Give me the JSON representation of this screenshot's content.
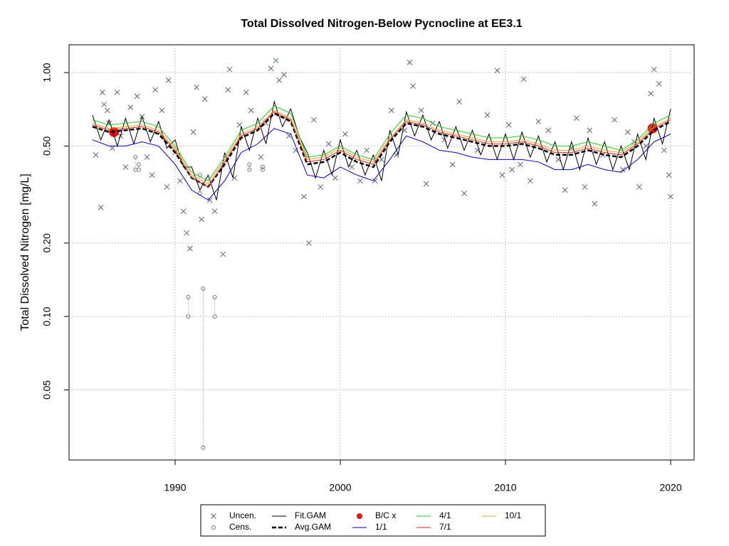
{
  "chart_data": {
    "type": "line",
    "title": "Total Dissolved Nitrogen-Below Pycnocline at EE3.1",
    "y_label": "Total Dissolved Nitrogen [mg/L]",
    "xlim": [
      1983.58,
      2021.42
    ],
    "ylim": [
      0.0258,
      1.3
    ],
    "log_y": true,
    "grid": true,
    "xticks": [
      1990,
      2000,
      2010,
      2020
    ],
    "yticks": [
      {
        "value": 0.05,
        "label": "0.05"
      },
      {
        "value": 0.1,
        "label": "0.10"
      },
      {
        "value": 0.2,
        "label": "0.20"
      },
      {
        "value": 0.5,
        "label": "0.50"
      },
      {
        "value": 1,
        "label": "1.00"
      }
    ],
    "series": [
      {
        "name": "Uncen.",
        "type": "scatter",
        "marker": "x",
        "color": "#5a6478",
        "x": [
          1985.2,
          1985.5,
          1985.6,
          1985.7,
          1985.9,
          1986.0,
          1986.2,
          1986.5,
          1986.7,
          1987.0,
          1987.3,
          1987.7,
          1988.0,
          1988.3,
          1988.6,
          1988.8,
          1989.2,
          1989.5,
          1989.6,
          1990.0,
          1990.3,
          1990.5,
          1990.7,
          1990.9,
          1991.1,
          1991.3,
          1991.6,
          1991.8,
          1992.1,
          1992.4,
          1992.9,
          1993.2,
          1993.3,
          1993.6,
          1993.9,
          1994.3,
          1994.6,
          1995.2,
          1995.5,
          1995.8,
          1996.1,
          1996.3,
          1996.6,
          1996.9,
          1997.3,
          1997.8,
          1998.1,
          1998.4,
          1998.8,
          1999.3,
          1999.7,
          2000.3,
          2000.7,
          2001.2,
          2001.6,
          2002.1,
          2002.5,
          2003.1,
          2003.4,
          2003.9,
          2004.2,
          2004.4,
          2004.9,
          2005.2,
          2005.6,
          2006.3,
          2006.8,
          2007.2,
          2007.5,
          2008.3,
          2008.9,
          2009.5,
          2009.8,
          2010.2,
          2010.4,
          2010.9,
          2011.1,
          2011.5,
          2012.0,
          2012.6,
          2013.2,
          2013.6,
          2014.0,
          2014.3,
          2014.8,
          2015.1,
          2015.4,
          2015.9,
          2016.6,
          2017.1,
          2017.4,
          2017.8,
          2018.1,
          2018.5,
          2018.8,
          2019.0,
          2019.3,
          2019.6,
          2019.9,
          2020.0
        ],
        "values": [
          0.46,
          0.28,
          0.83,
          0.74,
          0.7,
          0.62,
          0.49,
          0.83,
          0.55,
          0.41,
          0.72,
          0.8,
          0.66,
          0.45,
          0.38,
          0.85,
          0.7,
          0.34,
          0.93,
          0.47,
          0.36,
          0.27,
          0.22,
          0.19,
          0.57,
          0.87,
          0.25,
          0.78,
          0.3,
          0.27,
          0.18,
          0.85,
          1.03,
          0.37,
          0.61,
          0.83,
          0.7,
          0.45,
          0.62,
          1.04,
          1.12,
          0.93,
          0.98,
          0.55,
          0.48,
          0.31,
          0.2,
          0.64,
          0.34,
          0.51,
          0.37,
          0.56,
          0.41,
          0.36,
          0.48,
          0.36,
          0.44,
          0.7,
          0.46,
          0.58,
          1.1,
          0.88,
          0.7,
          0.35,
          0.62,
          0.53,
          0.42,
          0.76,
          0.32,
          0.48,
          0.67,
          1.02,
          0.38,
          0.61,
          0.4,
          0.42,
          0.94,
          0.36,
          0.63,
          0.58,
          0.44,
          0.33,
          0.49,
          0.65,
          0.34,
          0.58,
          0.29,
          0.46,
          0.64,
          0.4,
          0.57,
          0.52,
          0.34,
          0.5,
          0.82,
          1.03,
          0.9,
          0.48,
          0.38,
          0.31
        ]
      },
      {
        "name": "Cens.",
        "type": "interval",
        "marker": "o",
        "color": "#777777",
        "x": [
          1987.6,
          1987.8,
          1990.8,
          1991.5,
          1991.7,
          1992.4,
          1994.5,
          1995.3
        ],
        "values": [
          0.45,
          0.42,
          0.12,
          0.38,
          0.13,
          0.12,
          0.42,
          0.41
        ],
        "lower": [
          0.4,
          0.4,
          0.1,
          0.32,
          0.029,
          0.1,
          0.4,
          0.4
        ]
      },
      {
        "name": "Fit.GAM",
        "type": "line",
        "color": "#000000",
        "width": 1,
        "x": [
          1985.0,
          1985.5,
          1986.0,
          1986.5,
          1987.0,
          1987.5,
          1988.0,
          1988.5,
          1989.0,
          1989.5,
          1990.0,
          1990.5,
          1991.0,
          1991.5,
          1992.0,
          1992.5,
          1993.0,
          1993.5,
          1994.0,
          1994.5,
          1995.0,
          1995.5,
          1996.0,
          1996.5,
          1997.0,
          1997.5,
          1998.0,
          1998.5,
          1999.0,
          1999.5,
          2000.0,
          2000.5,
          2001.0,
          2001.5,
          2002.0,
          2002.5,
          2003.0,
          2003.5,
          2004.0,
          2004.5,
          2005.0,
          2005.5,
          2006.0,
          2006.5,
          2007.0,
          2007.5,
          2008.0,
          2008.5,
          2009.0,
          2009.5,
          2010.0,
          2010.5,
          2011.0,
          2011.5,
          2012.0,
          2012.5,
          2013.0,
          2013.5,
          2014.0,
          2014.5,
          2015.0,
          2015.5,
          2016.0,
          2016.5,
          2017.0,
          2017.5,
          2018.0,
          2018.5,
          2019.0,
          2019.5,
          2020.0
        ],
        "values": [
          0.67,
          0.53,
          0.64,
          0.5,
          0.65,
          0.51,
          0.66,
          0.52,
          0.63,
          0.49,
          0.53,
          0.41,
          0.41,
          0.33,
          0.38,
          0.3,
          0.47,
          0.37,
          0.6,
          0.48,
          0.65,
          0.51,
          0.76,
          0.6,
          0.71,
          0.55,
          0.47,
          0.37,
          0.48,
          0.38,
          0.53,
          0.41,
          0.48,
          0.38,
          0.46,
          0.36,
          0.58,
          0.46,
          0.69,
          0.55,
          0.67,
          0.53,
          0.63,
          0.49,
          0.6,
          0.48,
          0.58,
          0.46,
          0.56,
          0.44,
          0.56,
          0.44,
          0.57,
          0.45,
          0.55,
          0.43,
          0.52,
          0.4,
          0.52,
          0.4,
          0.54,
          0.42,
          0.52,
          0.4,
          0.5,
          0.4,
          0.56,
          0.44,
          0.65,
          0.51,
          0.71
        ]
      },
      {
        "name": "Avg.GAM",
        "type": "line",
        "color": "#000000",
        "width": 2.5,
        "dash": true,
        "x": [
          1985,
          1986,
          1987,
          1988,
          1989,
          1990,
          1991,
          1992,
          1993,
          1994,
          1995,
          1996,
          1997,
          1998,
          1999,
          2000,
          2001,
          2002,
          2003,
          2004,
          2005,
          2006,
          2007,
          2008,
          2009,
          2010,
          2011,
          2012,
          2013,
          2014,
          2015,
          2016,
          2017,
          2018,
          2019,
          2020
        ],
        "values": [
          0.6,
          0.57,
          0.58,
          0.59,
          0.56,
          0.47,
          0.37,
          0.34,
          0.42,
          0.54,
          0.58,
          0.68,
          0.63,
          0.42,
          0.43,
          0.47,
          0.43,
          0.41,
          0.52,
          0.62,
          0.6,
          0.56,
          0.54,
          0.52,
          0.5,
          0.5,
          0.51,
          0.49,
          0.46,
          0.46,
          0.48,
          0.46,
          0.45,
          0.5,
          0.58,
          0.63
        ]
      },
      {
        "name": "B/C x",
        "type": "scatter",
        "marker": "dot",
        "color": "#ee1111",
        "x": [
          1986.3,
          2018.9
        ],
        "values": [
          0.57,
          0.59
        ]
      },
      {
        "name": "1/1",
        "type": "line",
        "color": "#0000cc",
        "width": 1,
        "x": [
          1985,
          1986,
          1987,
          1988,
          1989,
          1990,
          1991,
          1992,
          1993,
          1994,
          1995,
          1996,
          1997,
          1998,
          1999,
          2000,
          2001,
          2002,
          2003,
          2004,
          2005,
          2006,
          2007,
          2008,
          2009,
          2010,
          2011,
          2012,
          2013,
          2014,
          2015,
          2016,
          2017,
          2018,
          2019,
          2020
        ],
        "values": [
          0.53,
          0.5,
          0.5,
          0.52,
          0.5,
          0.42,
          0.33,
          0.3,
          0.36,
          0.47,
          0.51,
          0.59,
          0.56,
          0.38,
          0.37,
          0.41,
          0.38,
          0.36,
          0.44,
          0.55,
          0.52,
          0.48,
          0.47,
          0.45,
          0.44,
          0.44,
          0.44,
          0.43,
          0.4,
          0.4,
          0.42,
          0.4,
          0.39,
          0.44,
          0.52,
          0.56
        ]
      },
      {
        "name": "4/1",
        "type": "line",
        "color": "#22cc22",
        "width": 1,
        "x": [
          1985,
          1986,
          1987,
          1988,
          1989,
          1990,
          1991,
          1992,
          1993,
          1994,
          1995,
          1996,
          1997,
          1998,
          1999,
          2000,
          2001,
          2002,
          2003,
          2004,
          2005,
          2006,
          2007,
          2008,
          2009,
          2010,
          2011,
          2012,
          2013,
          2014,
          2015,
          2016,
          2017,
          2018,
          2019,
          2020
        ],
        "values": [
          0.64,
          0.61,
          0.62,
          0.63,
          0.6,
          0.5,
          0.39,
          0.36,
          0.45,
          0.58,
          0.62,
          0.73,
          0.68,
          0.45,
          0.46,
          0.5,
          0.46,
          0.44,
          0.56,
          0.67,
          0.65,
          0.6,
          0.58,
          0.56,
          0.54,
          0.54,
          0.55,
          0.53,
          0.5,
          0.5,
          0.52,
          0.5,
          0.48,
          0.53,
          0.62,
          0.67
        ]
      },
      {
        "name": "7/1",
        "type": "line",
        "color": "#dd2222",
        "width": 1,
        "x": [
          1985,
          1986,
          1987,
          1988,
          1989,
          1990,
          1991,
          1992,
          1993,
          1994,
          1995,
          1996,
          1997,
          1998,
          1999,
          2000,
          2001,
          2002,
          2003,
          2004,
          2005,
          2006,
          2007,
          2008,
          2009,
          2010,
          2011,
          2012,
          2013,
          2014,
          2015,
          2016,
          2017,
          2018,
          2019,
          2020
        ],
        "values": [
          0.61,
          0.58,
          0.59,
          0.6,
          0.57,
          0.48,
          0.37,
          0.34,
          0.43,
          0.55,
          0.59,
          0.69,
          0.64,
          0.43,
          0.44,
          0.48,
          0.44,
          0.42,
          0.53,
          0.63,
          0.61,
          0.57,
          0.55,
          0.53,
          0.51,
          0.51,
          0.52,
          0.5,
          0.47,
          0.47,
          0.49,
          0.47,
          0.46,
          0.51,
          0.59,
          0.64
        ]
      },
      {
        "name": "10/1",
        "type": "line",
        "color": "#f0a020",
        "width": 1,
        "x": [
          1985,
          1986,
          1987,
          1988,
          1989,
          1990,
          1991,
          1992,
          1993,
          1994,
          1995,
          1996,
          1997,
          1998,
          1999,
          2000,
          2001,
          2002,
          2003,
          2004,
          2005,
          2006,
          2007,
          2008,
          2009,
          2010,
          2011,
          2012,
          2013,
          2014,
          2015,
          2016,
          2017,
          2018,
          2019,
          2020
        ],
        "values": [
          0.62,
          0.59,
          0.6,
          0.61,
          0.58,
          0.49,
          0.38,
          0.35,
          0.44,
          0.56,
          0.6,
          0.7,
          0.65,
          0.44,
          0.45,
          0.49,
          0.45,
          0.43,
          0.54,
          0.64,
          0.62,
          0.58,
          0.56,
          0.54,
          0.52,
          0.52,
          0.53,
          0.51,
          0.48,
          0.48,
          0.5,
          0.48,
          0.47,
          0.52,
          0.6,
          0.65
        ]
      }
    ]
  }
}
